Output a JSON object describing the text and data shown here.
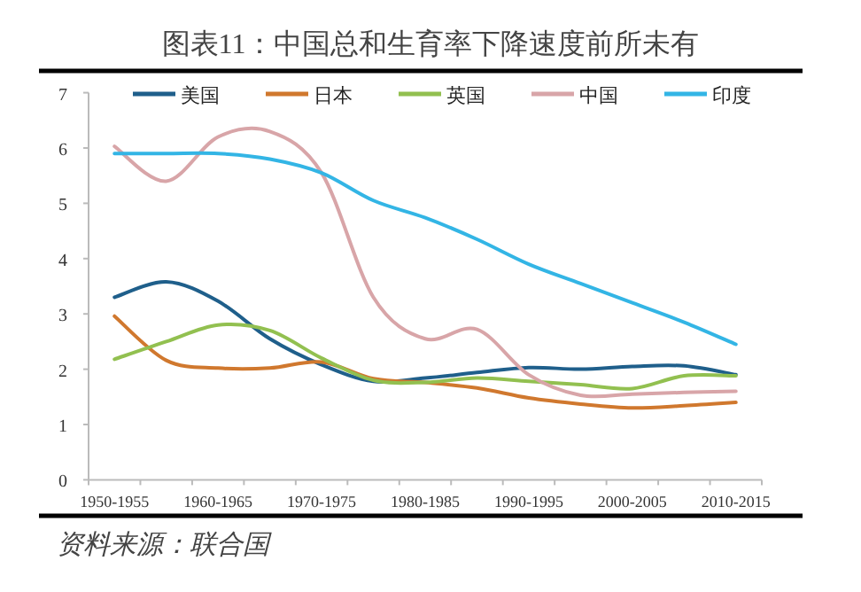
{
  "chart_data": {
    "type": "line",
    "title": "图表11：中国总和生育率下降速度前所未有",
    "annotations": [
      "资料来源：联合国"
    ],
    "categories": [
      "1950-1955",
      null,
      "1960-1965",
      null,
      "1970-1975",
      null,
      "1980-1985",
      null,
      "1990-1995",
      null,
      "2000-2005",
      null,
      "2010-2015"
    ],
    "series": [
      {
        "name": "美国",
        "color": "#1f5f8b",
        "values": [
          3.3,
          3.58,
          3.23,
          2.55,
          2.08,
          1.78,
          1.84,
          1.94,
          2.03,
          2.0,
          2.05,
          2.06,
          1.9
        ]
      },
      {
        "name": "日本",
        "color": "#d0782e",
        "values": [
          2.96,
          2.16,
          2.02,
          2.02,
          2.13,
          1.83,
          1.76,
          1.66,
          1.48,
          1.37,
          1.3,
          1.34,
          1.4
        ]
      },
      {
        "name": "英国",
        "color": "#92c050",
        "values": [
          2.18,
          2.5,
          2.8,
          2.7,
          2.2,
          1.8,
          1.76,
          1.84,
          1.78,
          1.72,
          1.65,
          1.88,
          1.88
        ]
      },
      {
        "name": "中国",
        "color": "#d8a5a8",
        "values": [
          6.03,
          5.4,
          6.2,
          6.3,
          5.55,
          3.3,
          2.55,
          2.72,
          1.9,
          1.53,
          1.55,
          1.58,
          1.6
        ]
      },
      {
        "name": "印度",
        "color": "#33b5e5",
        "values": [
          5.9,
          5.9,
          5.9,
          5.8,
          5.55,
          5.05,
          4.74,
          4.35,
          3.9,
          3.55,
          3.2,
          2.85,
          2.45
        ]
      }
    ],
    "ylim": [
      0,
      7
    ],
    "yticks": [
      0,
      1,
      2,
      3,
      4,
      5,
      6,
      7
    ],
    "legend": "top",
    "grid": false,
    "marker": "none",
    "line_style": "solid"
  }
}
